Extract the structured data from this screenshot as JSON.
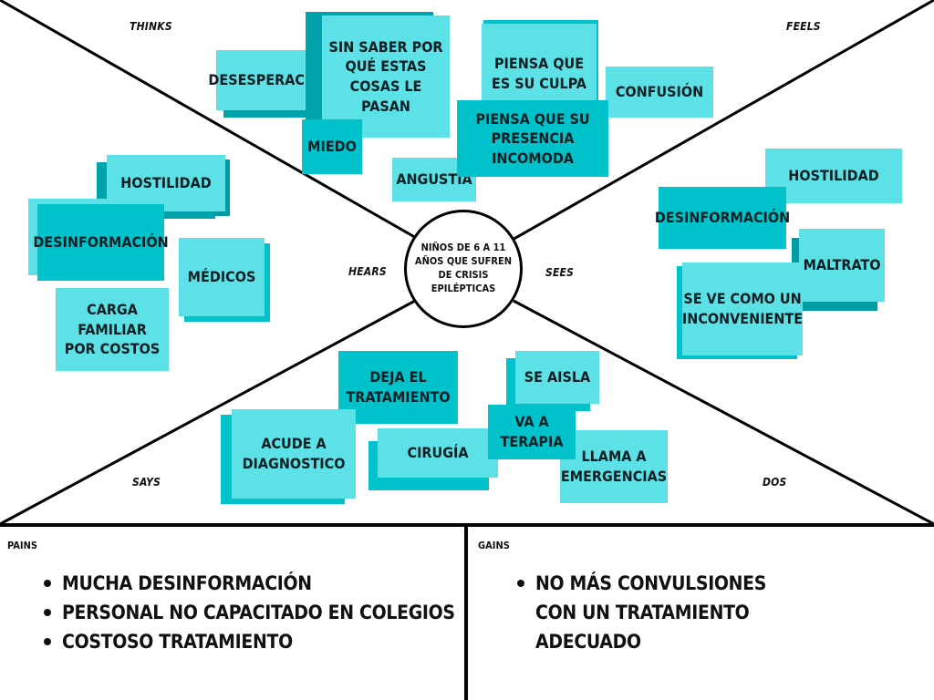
{
  "center": "NIÑOS DE 6 A 11 AÑOS QUE SUFREN DE CRISIS EPILÉPTICAS",
  "labels": {
    "thinks": "THINKS",
    "feels": "FEELS",
    "hears": "HEARS",
    "sees": "SEES",
    "says": "SAYS",
    "dos": "DOS"
  },
  "thinks_feels_notes": {
    "desesperacion": "DESESPERACIÓN",
    "sin_saber": "SIN SABER POR QUÉ ESTAS COSAS LE PASAN",
    "miedo": "MIEDO",
    "angustia": "ANGUSTIA",
    "piensa_culpa": "PIENSA QUE ES SU CULPA",
    "confusion": "CONFUSIÓN",
    "presencia": "PIENSA QUE SU PRESENCIA INCOMODA"
  },
  "hears_notes": {
    "hostilidad": "HOSTILIDAD",
    "desinformacion": "DESINFORMACIÓN",
    "medicos": "MÉDICOS",
    "carga": "CARGA FAMILIAR POR COSTOS"
  },
  "sees_notes": {
    "hostilidad": "HOSTILIDAD",
    "desinformacion": "DESINFORMACIÓN",
    "maltrato": "MALTRATO",
    "inconveniente": "SE VE COMO UN INCONVENIENTE"
  },
  "says_dos_notes": {
    "deja": "DEJA EL TRATAMIENTO",
    "se_aisla": "SE AISLA",
    "acude": "ACUDE A DIAGNOSTICO",
    "cirugia": "CIRUGÍA",
    "terapia": "VA A TERAPIA",
    "emergencias": "LLAMA A EMERGENCIAS"
  },
  "pains": {
    "title": "PAINS",
    "items": [
      "MUCHA DESINFORMACIÓN",
      "PERSONAL NO CAPACITADO EN COLEGIOS",
      "COSTOSO TRATAMIENTO"
    ]
  },
  "gains": {
    "title": "GAINS",
    "items": [
      "NO MÁS CONVULSIONES CON UN TRATAMIENTO ADECUADO"
    ]
  },
  "colors": {
    "light": "#5ce1e6",
    "dark": "#00c2cb",
    "shadow": "#00a3aa"
  }
}
